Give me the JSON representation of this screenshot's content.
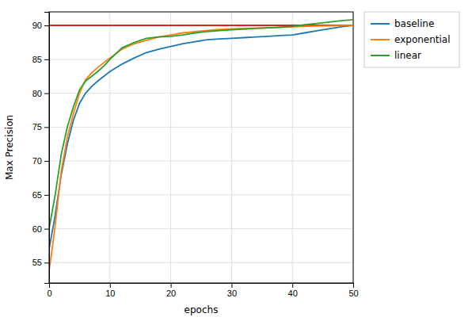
{
  "chart_data": {
    "type": "line",
    "xlabel": "epochs",
    "ylabel": "Max Precision",
    "xlim": [
      0,
      50
    ],
    "ylim": [
      52,
      92
    ],
    "xticks": [
      0,
      10,
      20,
      30,
      40,
      50
    ],
    "yticks": [
      55,
      60,
      65,
      70,
      75,
      80,
      85,
      90
    ],
    "grid": true,
    "legend": "right",
    "x": [
      0,
      0.5,
      1,
      1.5,
      2,
      3,
      4,
      5,
      6,
      7,
      8,
      9,
      10,
      12,
      14,
      16,
      18,
      20,
      22,
      24,
      26,
      28,
      30,
      32,
      34,
      36,
      38,
      40,
      42,
      44,
      46,
      48,
      50
    ],
    "series": [
      {
        "name": "baseline",
        "color": "#1f77b4",
        "values": [
          57.0,
          59.5,
          62.0,
          65.0,
          68.0,
          72.5,
          76.0,
          78.5,
          80.0,
          81.0,
          81.8,
          82.5,
          83.2,
          84.3,
          85.2,
          86.0,
          86.5,
          86.9,
          87.3,
          87.6,
          87.9,
          88.0,
          88.1,
          88.2,
          88.3,
          88.4,
          88.5,
          88.6,
          88.9,
          89.2,
          89.5,
          89.8,
          90.0
        ]
      },
      {
        "name": "exponential",
        "color": "#ff7f0e",
        "values": [
          53.8,
          57.0,
          60.5,
          64.5,
          68.5,
          73.5,
          77.0,
          80.0,
          82.0,
          83.0,
          83.8,
          84.5,
          85.2,
          86.5,
          87.3,
          87.8,
          88.3,
          88.6,
          88.9,
          89.1,
          89.25,
          89.4,
          89.5,
          89.55,
          89.6,
          89.65,
          89.7,
          89.8,
          89.85,
          89.9,
          89.93,
          89.97,
          90.0
        ]
      },
      {
        "name": "linear",
        "color": "#2ca02c",
        "values": [
          60.0,
          62.5,
          65.0,
          68.0,
          71.0,
          75.0,
          78.0,
          80.5,
          81.8,
          82.5,
          83.2,
          84.0,
          85.0,
          86.7,
          87.5,
          88.1,
          88.3,
          88.4,
          88.6,
          88.9,
          89.1,
          89.25,
          89.35,
          89.45,
          89.55,
          89.65,
          89.75,
          89.85,
          90.1,
          90.3,
          90.5,
          90.7,
          90.85
        ]
      }
    ],
    "hlines": [
      {
        "value": 90,
        "color": "#d62728"
      }
    ]
  }
}
